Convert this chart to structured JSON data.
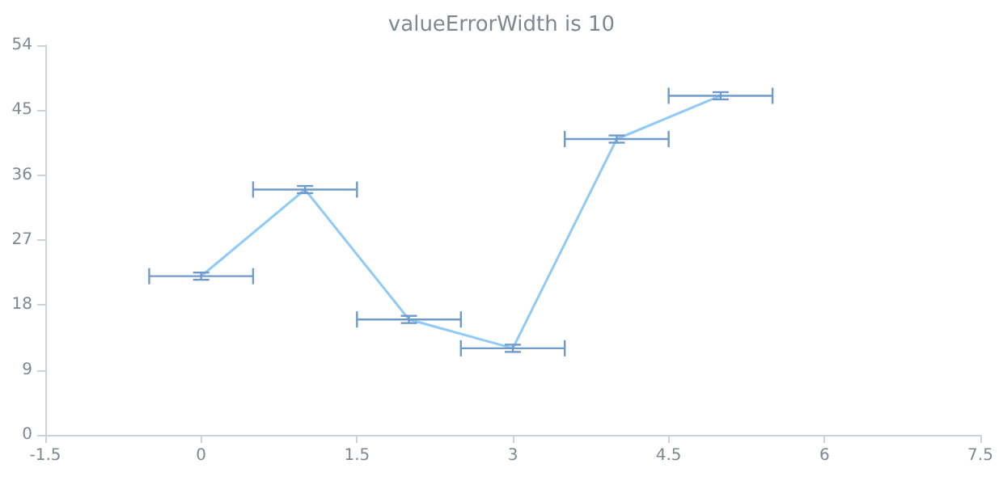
{
  "chart_data": {
    "type": "line",
    "title": "valueErrorWidth is 10",
    "x": [
      0,
      1,
      2,
      3,
      4,
      5
    ],
    "series": [
      {
        "color": "#90caf9",
        "values": [
          22,
          34,
          16,
          12,
          41,
          47
        ],
        "errors": [
          0.5,
          0.5,
          0.5,
          0.5,
          0.5,
          0.5
        ],
        "xerrors": [
          0.5,
          0.5,
          0.5,
          0.5,
          0.5,
          0.5
        ]
      }
    ],
    "xlim": [
      -1.5,
      7.5
    ],
    "xticks": [
      -1.5,
      0,
      1.5,
      3,
      4.5,
      6,
      7.5
    ],
    "ylim": [
      0,
      54
    ],
    "yticks": [
      0,
      9,
      18,
      27,
      36,
      45,
      54
    ],
    "grid": false,
    "marker": "none",
    "line_style": "solid"
  }
}
